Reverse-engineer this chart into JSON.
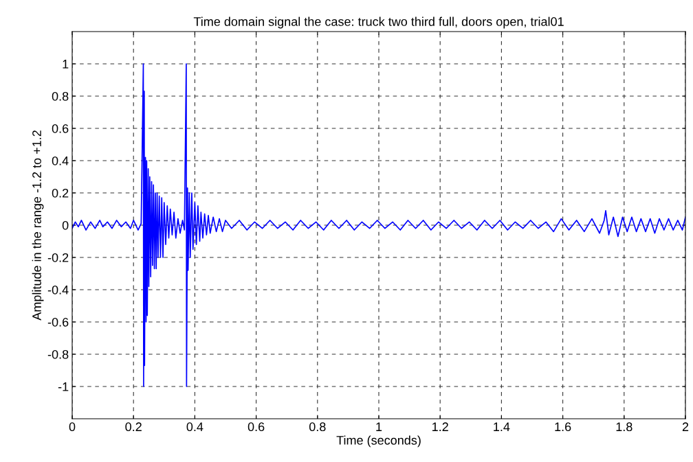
{
  "chart_data": {
    "type": "line",
    "title": "Time domain signal the case: truck two third full, doors open, trial01",
    "xlabel": "Time (seconds)",
    "ylabel": "Amplitude in the range -1.2 to +1.2",
    "x": [
      0,
      0.01,
      0.02,
      0.03,
      0.045,
      0.06,
      0.075,
      0.09,
      0.1,
      0.115,
      0.13,
      0.145,
      0.16,
      0.175,
      0.19,
      0.2,
      0.215,
      0.225,
      0.232,
      0.233,
      0.235,
      0.236,
      0.239,
      0.241,
      0.243,
      0.245,
      0.248,
      0.25,
      0.253,
      0.256,
      0.259,
      0.262,
      0.265,
      0.268,
      0.271,
      0.274,
      0.277,
      0.28,
      0.284,
      0.288,
      0.292,
      0.296,
      0.3,
      0.305,
      0.31,
      0.315,
      0.32,
      0.326,
      0.332,
      0.338,
      0.345,
      0.352,
      0.36,
      0.366,
      0.372,
      0.373,
      0.376,
      0.378,
      0.382,
      0.385,
      0.39,
      0.394,
      0.4,
      0.405,
      0.41,
      0.416,
      0.42,
      0.426,
      0.432,
      0.438,
      0.444,
      0.45,
      0.46,
      0.47,
      0.48,
      0.49,
      0.5,
      0.52,
      0.545,
      0.57,
      0.595,
      0.62,
      0.645,
      0.67,
      0.695,
      0.72,
      0.745,
      0.77,
      0.795,
      0.82,
      0.845,
      0.87,
      0.895,
      0.92,
      0.945,
      0.97,
      0.995,
      1.02,
      1.045,
      1.07,
      1.095,
      1.12,
      1.145,
      1.17,
      1.195,
      1.22,
      1.245,
      1.27,
      1.295,
      1.32,
      1.345,
      1.37,
      1.395,
      1.42,
      1.445,
      1.47,
      1.495,
      1.52,
      1.545,
      1.57,
      1.595,
      1.62,
      1.645,
      1.67,
      1.695,
      1.72,
      1.735,
      1.74,
      1.75,
      1.765,
      1.78,
      1.795,
      1.81,
      1.825,
      1.84,
      1.855,
      1.87,
      1.885,
      1.9,
      1.915,
      1.93,
      1.945,
      1.96,
      1.975,
      1.99,
      2.0
    ],
    "series": [
      {
        "color": "#0000ff",
        "values": [
          -0.02,
          0.02,
          -0.01,
          0.03,
          -0.03,
          0.02,
          -0.02,
          0.03,
          -0.01,
          0.02,
          -0.02,
          0.03,
          -0.01,
          0.02,
          -0.02,
          0.03,
          -0.03,
          0.01,
          1.0,
          -1.0,
          0.83,
          -0.87,
          0.42,
          -0.6,
          0.4,
          -0.56,
          0.35,
          -0.38,
          0.3,
          -0.32,
          0.27,
          -0.25,
          0.25,
          -0.27,
          0.2,
          -0.27,
          0.2,
          -0.2,
          0.18,
          -0.2,
          0.17,
          -0.2,
          0.14,
          -0.12,
          0.12,
          -0.08,
          0.1,
          -0.06,
          0.08,
          -0.08,
          0.04,
          -0.05,
          0.03,
          -0.03,
          1.0,
          -1.0,
          0.23,
          -0.28,
          0.2,
          -0.2,
          0.2,
          -0.15,
          0.14,
          -0.12,
          0.12,
          -0.1,
          0.08,
          -0.08,
          0.07,
          -0.06,
          0.06,
          -0.05,
          0.05,
          -0.04,
          0.04,
          -0.04,
          0.03,
          -0.02,
          0.03,
          -0.03,
          0.02,
          -0.02,
          0.03,
          -0.02,
          0.02,
          -0.03,
          0.03,
          -0.02,
          0.02,
          -0.03,
          0.03,
          -0.02,
          0.03,
          -0.03,
          0.02,
          -0.02,
          0.03,
          -0.02,
          0.02,
          -0.03,
          0.03,
          -0.02,
          0.03,
          -0.03,
          0.02,
          -0.02,
          0.03,
          -0.02,
          0.02,
          -0.03,
          0.03,
          -0.02,
          0.03,
          -0.03,
          0.02,
          -0.02,
          0.03,
          -0.02,
          0.02,
          -0.04,
          0.04,
          -0.03,
          0.03,
          -0.04,
          0.04,
          -0.05,
          0.03,
          0.09,
          -0.06,
          0.05,
          -0.07,
          0.05,
          -0.04,
          0.05,
          -0.04,
          0.04,
          -0.04,
          0.04,
          -0.05,
          0.04,
          -0.03,
          0.04,
          -0.03,
          0.03,
          -0.03,
          0.05
        ]
      }
    ],
    "xlim": [
      0,
      2
    ],
    "xticks": [
      0,
      0.2,
      0.4,
      0.6,
      0.8,
      1,
      1.2,
      1.4,
      1.6,
      1.8,
      2
    ],
    "ylim": [
      -1.2,
      1.2
    ],
    "yticks": [
      -1,
      -0.8,
      -0.6,
      -0.4,
      -0.2,
      0,
      0.2,
      0.4,
      0.6,
      0.8,
      1
    ],
    "grid": true,
    "line_style": "solid",
    "marker": "none"
  }
}
